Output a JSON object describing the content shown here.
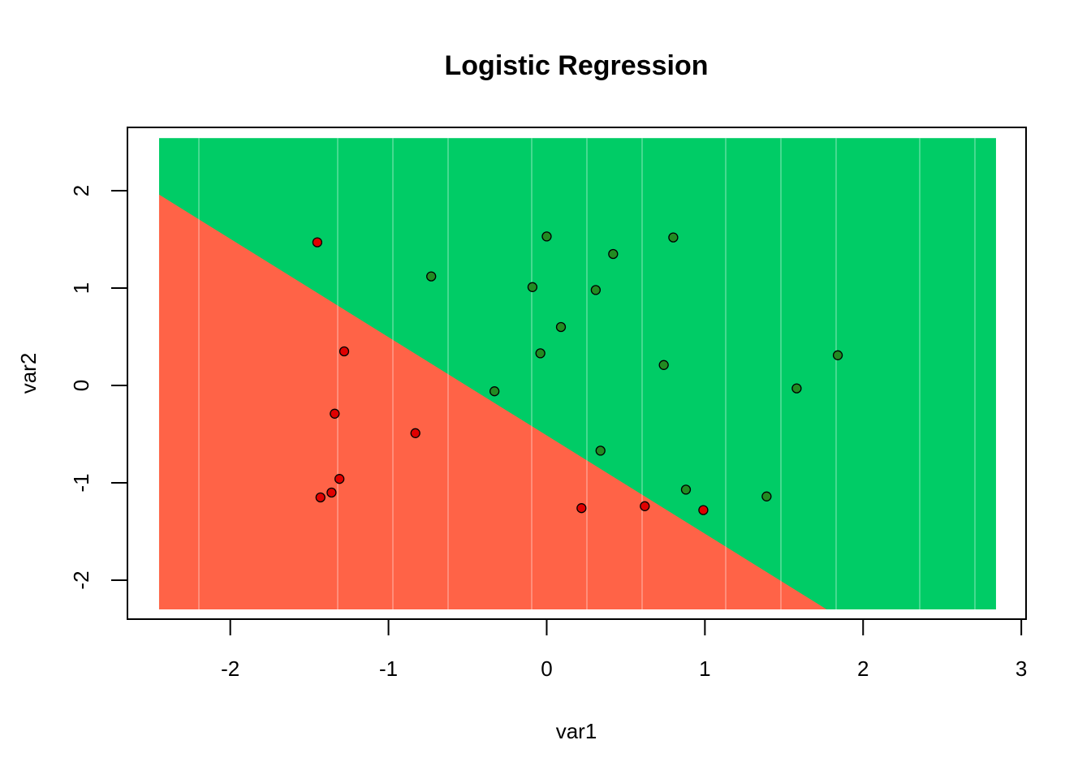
{
  "chart_data": {
    "type": "scatter",
    "title": "Logistic Regression",
    "xlabel": "var1",
    "ylabel": "var2",
    "xlim": [
      -2.65,
      3.03
    ],
    "ylim": [
      -2.4,
      2.65
    ],
    "x_ticks": [
      -2,
      -1,
      0,
      1,
      2,
      3
    ],
    "y_ticks": [
      -2,
      -1,
      0,
      1,
      2
    ],
    "grid": false,
    "legend": "none",
    "background": {
      "type": "decision-regions",
      "x_range": [
        -2.45,
        2.84
      ],
      "y_range": [
        -2.3,
        2.54
      ],
      "boundary": [
        [
          -2.45,
          1.96
        ],
        [
          1.77,
          -2.3
        ]
      ],
      "region_above_color": "#00CC66",
      "region_below_color": "#FF6347"
    },
    "series": [
      {
        "color": "#228B22",
        "points": [
          [
            0.0,
            1.53
          ],
          [
            0.8,
            1.52
          ],
          [
            0.42,
            1.35
          ],
          [
            -0.73,
            1.12
          ],
          [
            -0.09,
            1.01
          ],
          [
            0.31,
            0.98
          ],
          [
            0.09,
            0.6
          ],
          [
            -0.04,
            0.33
          ],
          [
            0.74,
            0.21
          ],
          [
            1.84,
            0.31
          ],
          [
            1.58,
            -0.03
          ],
          [
            -0.33,
            -0.06
          ],
          [
            0.34,
            -0.67
          ],
          [
            0.88,
            -1.07
          ],
          [
            1.39,
            -1.14
          ]
        ]
      },
      {
        "color": "#E00000",
        "points": [
          [
            -1.45,
            1.47
          ],
          [
            -1.28,
            0.35
          ],
          [
            -1.34,
            -0.29
          ],
          [
            -0.83,
            -0.49
          ],
          [
            -1.31,
            -0.96
          ],
          [
            -1.36,
            -1.1
          ],
          [
            -1.43,
            -1.15
          ],
          [
            0.22,
            -1.26
          ],
          [
            0.62,
            -1.24
          ],
          [
            0.99,
            -1.28
          ]
        ]
      }
    ]
  }
}
